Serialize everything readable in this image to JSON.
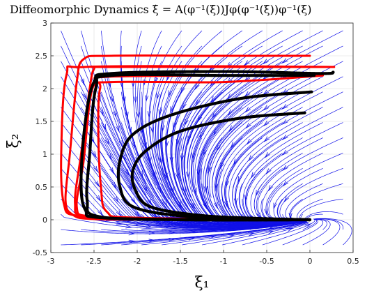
{
  "chart_data": {
    "type": "line",
    "title": "Diffeomorphic Dynamics ξ̇ = A(φ⁻¹(ξ))Jφ(φ⁻¹(ξ))φ⁻¹(ξ)",
    "xlabel": "ξ₁",
    "ylabel": "ξ₂",
    "xlim": [
      -3,
      0.5
    ],
    "ylim": [
      -0.5,
      3
    ],
    "xticks": [
      "-3",
      "-2.5",
      "-2",
      "-1.5",
      "-1",
      "-0.5",
      "0",
      "0.5"
    ],
    "yticks": [
      "-0.5",
      "0",
      "0.5",
      "1",
      "1.5",
      "2",
      "2.5",
      "3"
    ],
    "grid": true,
    "attractor": [
      0,
      0
    ],
    "streamlines": {
      "color": "#1010e8",
      "layer": "background vector field"
    },
    "series": [
      {
        "style": "demonstration",
        "color": "#ff0000",
        "trajectories": [
          [
            [
              0,
              2.5
            ],
            [
              -1.0,
              2.5
            ],
            [
              -2.3,
              2.5
            ],
            [
              -2.62,
              2.45
            ],
            [
              -2.7,
              2.1
            ],
            [
              -2.78,
              1.0
            ],
            [
              -2.83,
              0.3
            ],
            [
              -2.75,
              0.08
            ],
            [
              -2.5,
              0.01
            ],
            [
              -1.5,
              0.0
            ],
            [
              0,
              0
            ]
          ],
          [
            [
              0.28,
              2.33
            ],
            [
              -1.0,
              2.33
            ],
            [
              -2.4,
              2.33
            ],
            [
              -2.5,
              2.3
            ],
            [
              -2.55,
              2.0
            ],
            [
              -2.65,
              1.0
            ],
            [
              -2.72,
              0.25
            ],
            [
              -2.6,
              0.05
            ],
            [
              -1.8,
              0.01
            ],
            [
              0,
              0
            ]
          ],
          [
            [
              0.05,
              2.2
            ],
            [
              -1.0,
              2.2
            ],
            [
              -2.35,
              2.18
            ],
            [
              -2.48,
              2.1
            ],
            [
              -2.55,
              1.8
            ],
            [
              -2.62,
              0.9
            ],
            [
              -2.7,
              0.2
            ],
            [
              -2.55,
              0.05
            ],
            [
              -1.8,
              0.01
            ],
            [
              0,
              0
            ]
          ],
          [
            [
              0.15,
              2.2
            ],
            [
              -1.0,
              2.1
            ],
            [
              -2.3,
              2.1
            ],
            [
              -2.43,
              2.0
            ],
            [
              -2.45,
              1.3
            ],
            [
              -2.42,
              0.5
            ],
            [
              -2.35,
              0.12
            ],
            [
              -2.0,
              0.03
            ],
            [
              0,
              0
            ]
          ],
          [
            [
              0.28,
              2.33
            ],
            [
              -1.0,
              2.34
            ],
            [
              -2.6,
              2.33
            ],
            [
              -2.82,
              2.2
            ],
            [
              -2.88,
              1.0
            ],
            [
              -2.85,
              0.25
            ],
            [
              -2.7,
              0.06
            ],
            [
              -2.0,
              0.01
            ],
            [
              0,
              0
            ]
          ]
        ]
      },
      {
        "style": "reproduction",
        "color": "#000000",
        "trajectories": [
          [
            [
              0.27,
              2.25
            ],
            [
              0.12,
              2.23
            ],
            [
              -1.0,
              2.26
            ],
            [
              -2.3,
              2.23
            ],
            [
              -2.5,
              2.1
            ],
            [
              -2.6,
              1.5
            ],
            [
              -2.65,
              0.6
            ],
            [
              -2.6,
              0.15
            ],
            [
              -2.4,
              0.03
            ],
            [
              -1.0,
              0.0
            ],
            [
              0,
              0
            ]
          ],
          [
            [
              0.05,
              2.2
            ],
            [
              -1.0,
              2.2
            ],
            [
              -2.3,
              2.2
            ],
            [
              -2.48,
              2.0
            ],
            [
              -2.55,
              1.0
            ],
            [
              -2.58,
              0.3
            ],
            [
              -2.45,
              0.05
            ],
            [
              -1.5,
              0.0
            ],
            [
              0,
              0
            ]
          ],
          [
            [
              0.02,
              1.95
            ],
            [
              -0.8,
              1.85
            ],
            [
              -1.6,
              1.6
            ],
            [
              -2.05,
              1.3
            ],
            [
              -2.2,
              0.9
            ],
            [
              -2.2,
              0.5
            ],
            [
              -2.05,
              0.2
            ],
            [
              -1.5,
              0.06
            ],
            [
              -0.7,
              0.02
            ],
            [
              0,
              0
            ]
          ],
          [
            [
              -0.06,
              1.63
            ],
            [
              -0.8,
              1.55
            ],
            [
              -1.5,
              1.35
            ],
            [
              -1.9,
              1.05
            ],
            [
              -2.05,
              0.75
            ],
            [
              -2.02,
              0.45
            ],
            [
              -1.85,
              0.2
            ],
            [
              -1.3,
              0.07
            ],
            [
              -0.6,
              0.02
            ],
            [
              0,
              0
            ]
          ]
        ]
      }
    ]
  }
}
